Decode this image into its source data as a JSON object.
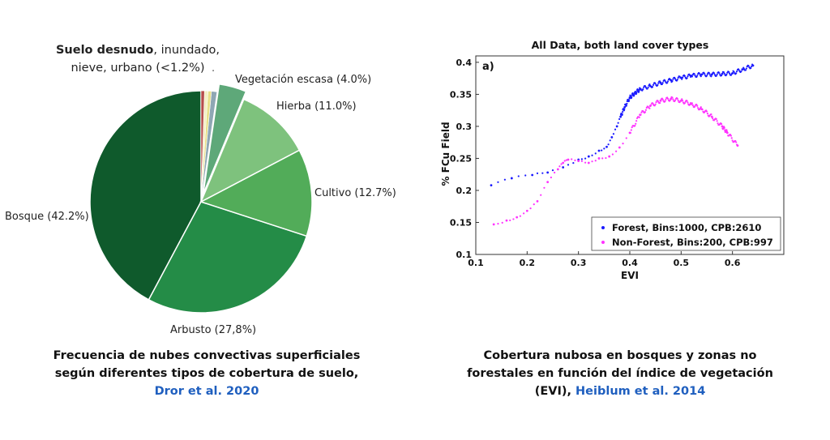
{
  "pie_chart": {
    "bold_label": "Suelo desnudo",
    "label_line1_rest": ", inundado,",
    "label_line2": "nieve, urbano (<1.2%)",
    "label_dot": ".",
    "colors": {
      "Bosque": "#0f5a2c",
      "Arbusto": "#248c47",
      "Cultivo": "#52ac59",
      "Hierba": "#7ec27d",
      "Vegetación escasa": "#5ea879",
      "Suelo desnudo": "#8ea7b4",
      "inundado": "#e8e089",
      "nieve": "#f4efc6",
      "urbano": "#b74b4b"
    }
  },
  "chart_data": [
    {
      "type": "pie",
      "slices": [
        {
          "name": "Bosque",
          "value": 42.2,
          "label": "Bosque (42.2%)"
        },
        {
          "name": "Arbusto",
          "value": 27.8,
          "label": "Arbusto (27,8%)"
        },
        {
          "name": "Cultivo",
          "value": 12.7,
          "label": "Cultivo  (12.7%)"
        },
        {
          "name": "Hierba",
          "value": 11.0,
          "label": "Hierba  (11.0%)"
        },
        {
          "name": "Vegetación escasa",
          "value": 4.0,
          "label": "Vegetación escasa (4.0%)",
          "exploded": true
        },
        {
          "name": "Suelo desnudo",
          "value": 0.8,
          "label": ""
        },
        {
          "name": "inundado",
          "value": 0.5,
          "label": ""
        },
        {
          "name": "nieve",
          "value": 0.5,
          "label": ""
        },
        {
          "name": "urbano",
          "value": 0.5,
          "label": ""
        }
      ]
    },
    {
      "type": "scatter",
      "title": "All Data, both land cover types",
      "panel_label": "a)",
      "xlabel": "EVI",
      "ylabel": "% FCu Field",
      "xlim": [
        0.1,
        0.7
      ],
      "ylim": [
        0.1,
        0.41
      ],
      "xticks": [
        "0.1",
        "0.2",
        "0.3",
        "0.4",
        "0.5",
        "0.6"
      ],
      "yticks": [
        "0.1",
        "0.15",
        "0.2",
        "0.25",
        "0.3",
        "0.35",
        "0.4"
      ],
      "legend_position": "bottom-right",
      "series": [
        {
          "name": "Forest, Bins:1000, CPB:2610",
          "color": "#1a1aff",
          "points": [
            [
              0.13,
              0.208
            ],
            [
              0.17,
              0.219
            ],
            [
              0.21,
              0.224
            ],
            [
              0.24,
              0.228
            ],
            [
              0.27,
              0.236
            ],
            [
              0.3,
              0.248
            ],
            [
              0.32,
              0.253
            ],
            [
              0.34,
              0.262
            ],
            [
              0.355,
              0.268
            ],
            [
              0.365,
              0.283
            ],
            [
              0.375,
              0.3
            ],
            [
              0.382,
              0.315
            ],
            [
              0.39,
              0.33
            ],
            [
              0.4,
              0.345
            ],
            [
              0.41,
              0.352
            ],
            [
              0.42,
              0.358
            ],
            [
              0.44,
              0.363
            ],
            [
              0.46,
              0.368
            ],
            [
              0.48,
              0.372
            ],
            [
              0.5,
              0.376
            ],
            [
              0.52,
              0.379
            ],
            [
              0.54,
              0.381
            ],
            [
              0.56,
              0.381
            ],
            [
              0.58,
              0.382
            ],
            [
              0.6,
              0.383
            ],
            [
              0.62,
              0.389
            ],
            [
              0.64,
              0.395
            ]
          ]
        },
        {
          "name": "Non-Forest, Bins:200, CPB:997",
          "color": "#ff33ff",
          "points": [
            [
              0.135,
              0.147
            ],
            [
              0.16,
              0.153
            ],
            [
              0.18,
              0.158
            ],
            [
              0.2,
              0.168
            ],
            [
              0.22,
              0.183
            ],
            [
              0.24,
              0.213
            ],
            [
              0.26,
              0.233
            ],
            [
              0.27,
              0.243
            ],
            [
              0.28,
              0.248
            ],
            [
              0.3,
              0.246
            ],
            [
              0.32,
              0.243
            ],
            [
              0.34,
              0.25
            ],
            [
              0.36,
              0.253
            ],
            [
              0.38,
              0.267
            ],
            [
              0.4,
              0.29
            ],
            [
              0.42,
              0.318
            ],
            [
              0.44,
              0.332
            ],
            [
              0.46,
              0.34
            ],
            [
              0.48,
              0.343
            ],
            [
              0.5,
              0.34
            ],
            [
              0.52,
              0.335
            ],
            [
              0.54,
              0.327
            ],
            [
              0.56,
              0.315
            ],
            [
              0.58,
              0.3
            ],
            [
              0.59,
              0.29
            ],
            [
              0.61,
              0.27
            ]
          ]
        }
      ]
    }
  ],
  "captions": {
    "left_line1": "Frecuencia de nubes convectivas superficiales",
    "left_line2": "según diferentes tipos de cobertura de suelo,",
    "left_link": "Dror et al. 2020",
    "right_line1": "Cobertura nubosa en bosques y zonas no",
    "right_line2": "forestales en función del índice de vegetación",
    "right_line3_prefix": "(EVI),  ",
    "right_link": "Heiblum et al. 2014"
  }
}
